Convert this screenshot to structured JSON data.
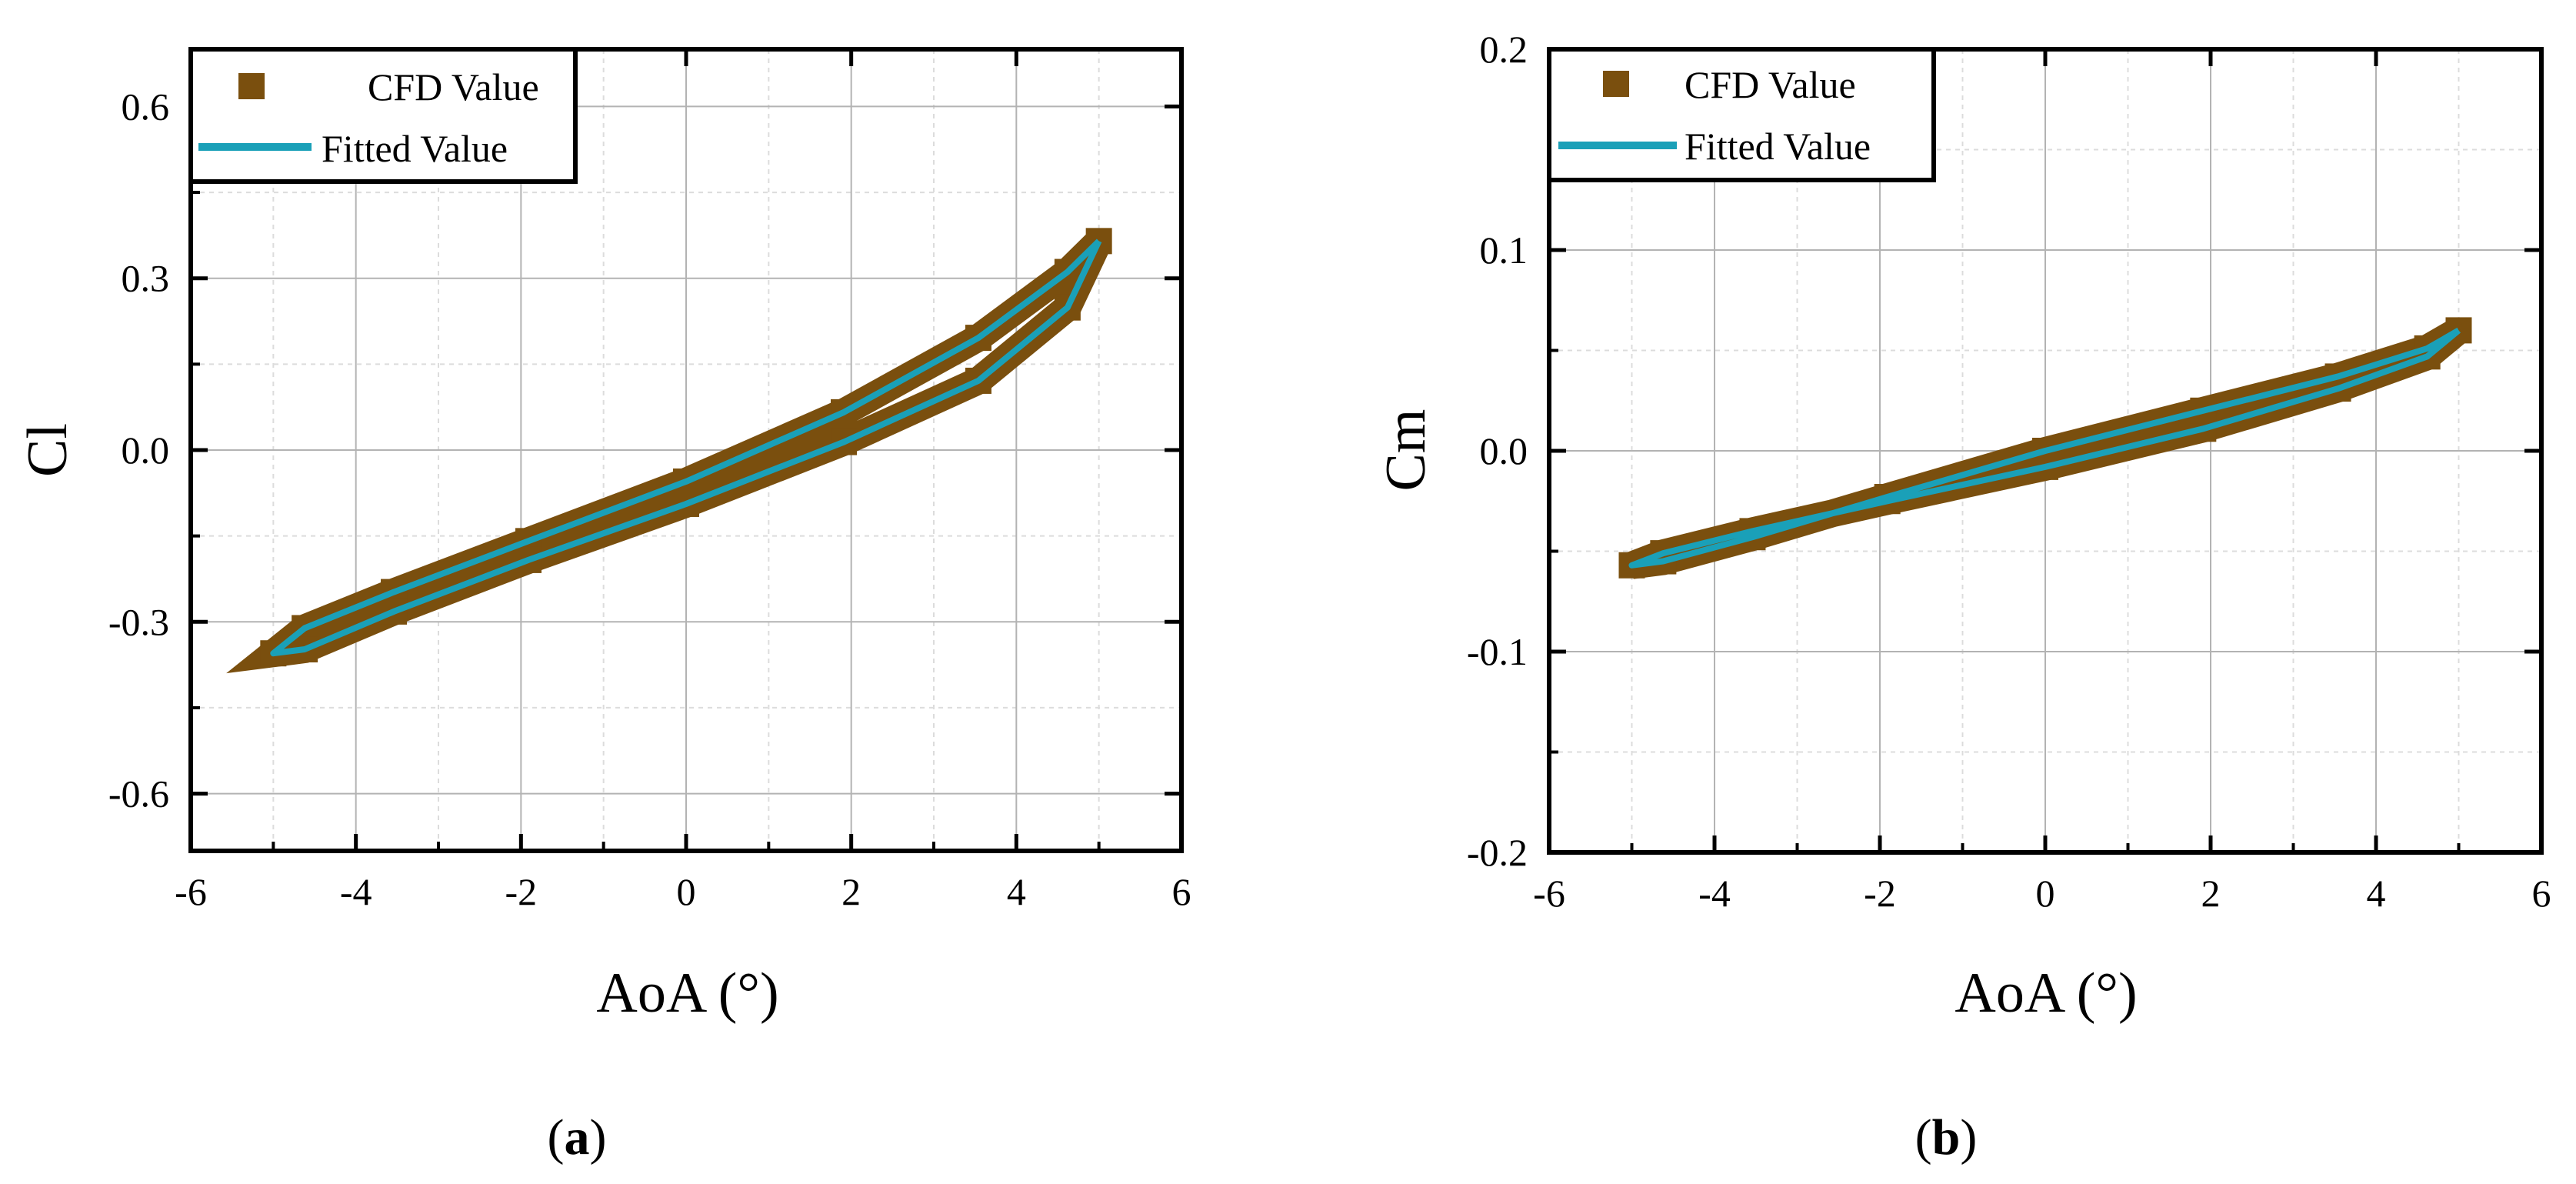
{
  "colors": {
    "cfd": "#7a4f0e",
    "fitted": "#1aa0b8",
    "grid_major": "#b3b3b3",
    "grid_minor": "#dcdcdc"
  },
  "chart_data": [
    {
      "id": "a",
      "type": "scatter",
      "caption": {
        "open": "(",
        "letter": "a",
        "close": ")"
      },
      "xlabel": "AoA (°)",
      "ylabel": "Cl",
      "xlim": [
        -6,
        6
      ],
      "ylim": [
        -0.7,
        0.7
      ],
      "xticks": [
        -6,
        -4,
        -2,
        0,
        2,
        4,
        6
      ],
      "xtick_labels": [
        "-6",
        "-4",
        "-2",
        "0",
        "2",
        "4",
        "6"
      ],
      "yticks": [
        -0.6,
        -0.3,
        0.0,
        0.3,
        0.6
      ],
      "ytick_labels": [
        "-0.6",
        "-0.3",
        "0.0",
        "0.3",
        "0.6"
      ],
      "legend": {
        "position": "top-left",
        "entries": [
          "CFD Value",
          "Fitted Value"
        ]
      },
      "series": [
        {
          "name": "CFD Value",
          "kind": "markers",
          "marker": "square",
          "x": [
            5.0,
            4.62,
            3.54,
            1.91,
            0.0,
            -1.91,
            -3.54,
            -4.62,
            -5.0,
            -4.62,
            -3.54,
            -1.91,
            0.0,
            1.91,
            3.54,
            4.62
          ],
          "y": [
            0.365,
            0.311,
            0.196,
            0.066,
            -0.055,
            -0.159,
            -0.248,
            -0.311,
            -0.355,
            -0.348,
            -0.282,
            -0.192,
            -0.094,
            0.014,
            0.121,
            0.249
          ]
        },
        {
          "name": "Fitted Value",
          "kind": "line",
          "x": [
            5.0,
            4.62,
            3.54,
            1.91,
            0.0,
            -1.91,
            -3.54,
            -4.62,
            -5.0,
            -4.62,
            -3.54,
            -1.91,
            0.0,
            1.91,
            3.54,
            4.62,
            5.0
          ],
          "y": [
            0.365,
            0.311,
            0.196,
            0.066,
            -0.055,
            -0.159,
            -0.248,
            -0.311,
            -0.355,
            -0.348,
            -0.282,
            -0.192,
            -0.094,
            0.014,
            0.121,
            0.249,
            0.365
          ]
        }
      ]
    },
    {
      "id": "b",
      "type": "scatter",
      "caption": {
        "open": "(",
        "letter": "b",
        "close": ")"
      },
      "xlabel": "AoA (°)",
      "ylabel": "Cm",
      "xlim": [
        -6,
        6
      ],
      "ylim": [
        -0.2,
        0.2
      ],
      "xticks": [
        -6,
        -4,
        -2,
        0,
        2,
        4,
        6
      ],
      "xtick_labels": [
        "-6",
        "-4",
        "-2",
        "0",
        "2",
        "4",
        "6"
      ],
      "yticks": [
        -0.2,
        -0.1,
        0.0,
        0.1,
        0.2
      ],
      "ytick_labels": [
        "-0.2",
        "-0.1",
        "0.0",
        "0.1",
        "0.2"
      ],
      "legend": {
        "position": "top-left",
        "entries": [
          "CFD Value",
          "Fitted Value"
        ]
      },
      "series": [
        {
          "name": "CFD Value",
          "kind": "markers",
          "marker": "square",
          "x": [
            5.0,
            4.62,
            3.54,
            1.91,
            0.0,
            -1.91,
            -3.54,
            -4.62,
            -5.0,
            -4.62,
            -3.54,
            -1.91,
            0.0,
            1.91,
            3.54,
            4.62
          ],
          "y": [
            0.06,
            0.047,
            0.031,
            0.011,
            -0.008,
            -0.025,
            -0.04,
            -0.051,
            -0.057,
            -0.055,
            -0.043,
            -0.023,
            0.0,
            0.02,
            0.037,
            0.051
          ]
        },
        {
          "name": "Fitted Value",
          "kind": "line",
          "x": [
            5.0,
            4.62,
            3.54,
            1.91,
            0.0,
            -1.91,
            -3.54,
            -4.62,
            -5.0,
            -4.62,
            -3.54,
            -1.91,
            0.0,
            1.91,
            3.54,
            4.62,
            5.0
          ],
          "y": [
            0.06,
            0.047,
            0.031,
            0.011,
            -0.008,
            -0.025,
            -0.04,
            -0.051,
            -0.057,
            -0.055,
            -0.043,
            -0.023,
            0.0,
            0.02,
            0.037,
            0.051,
            0.06
          ]
        }
      ]
    }
  ]
}
